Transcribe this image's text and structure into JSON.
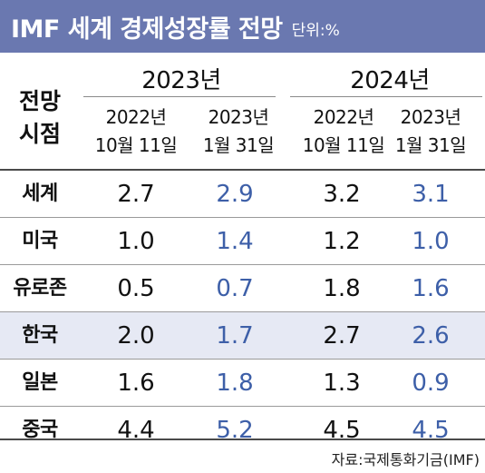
{
  "header": {
    "title": "IMF 세계 경제성장률 전망",
    "unit": "단위:%"
  },
  "row_header": [
    "전망",
    "시점"
  ],
  "source": "자료:국제통화기금(IMF)",
  "colors": {
    "title_bar": "#6a78b0",
    "latest_forecast": "#3d5fa8",
    "highlight_row": "#e6e9f4"
  },
  "chart_data": {
    "type": "table",
    "title": "IMF 세계 경제성장률 전망",
    "unit": "단위:%",
    "years": [
      "2023년",
      "2024년"
    ],
    "forecast_dates": [
      {
        "line1": "2022년",
        "line2": "10월 11일"
      },
      {
        "line1": "2023년",
        "line2": "1월 31일"
      }
    ],
    "rows": [
      {
        "country": "세계",
        "y2023": [
          "2.7",
          "2.9"
        ],
        "y2024": [
          "3.2",
          "3.1"
        ]
      },
      {
        "country": "미국",
        "y2023": [
          "1.0",
          "1.4"
        ],
        "y2024": [
          "1.2",
          "1.0"
        ]
      },
      {
        "country": "유로존",
        "y2023": [
          "0.5",
          "0.7"
        ],
        "y2024": [
          "1.8",
          "1.6"
        ]
      },
      {
        "country": "한국",
        "y2023": [
          "2.0",
          "1.7"
        ],
        "y2024": [
          "2.7",
          "2.6"
        ],
        "highlight": true
      },
      {
        "country": "일본",
        "y2023": [
          "1.6",
          "1.8"
        ],
        "y2024": [
          "1.3",
          "0.9"
        ]
      },
      {
        "country": "중국",
        "y2023": [
          "4.4",
          "5.2"
        ],
        "y2024": [
          "4.5",
          "4.5"
        ]
      }
    ]
  }
}
